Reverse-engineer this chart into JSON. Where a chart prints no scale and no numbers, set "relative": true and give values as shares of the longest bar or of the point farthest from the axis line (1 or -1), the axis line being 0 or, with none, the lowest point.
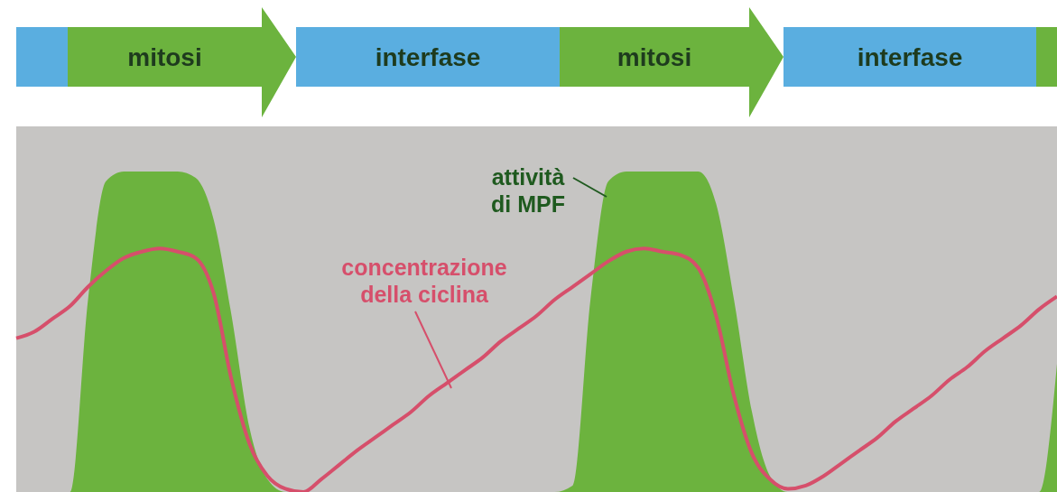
{
  "chart_data": [
    {
      "type": "other",
      "annotations": [
        "mitosi",
        "interfase",
        "mitosi",
        "interfase"
      ]
    },
    {
      "type": "area",
      "relative": true,
      "legend": false,
      "categories": [
        null,
        null,
        null,
        null,
        null,
        null,
        null,
        null,
        null,
        null,
        null,
        null,
        null,
        null,
        null,
        null,
        null,
        null,
        null,
        null,
        null,
        null,
        null,
        null,
        null,
        null,
        null,
        null,
        null,
        null,
        null,
        null,
        null,
        null,
        null,
        null,
        null,
        null,
        null,
        null,
        null,
        null,
        null,
        null,
        null,
        null,
        null,
        null,
        null,
        null,
        null,
        null,
        null,
        null,
        null,
        null,
        null,
        null,
        null
      ],
      "series": [
        {
          "name": "attività di MPF",
          "type": "area",
          "color": "#6cb33e",
          "values": [
            0,
            0,
            0,
            0,
            0.6,
            0.97,
            1,
            1,
            1,
            1,
            0.98,
            0.85,
            0.55,
            0.2,
            0.04,
            0,
            0,
            0,
            0,
            0,
            0,
            0,
            0,
            0,
            0,
            0,
            0,
            0,
            0,
            0,
            0,
            0.02,
            0.6,
            0.97,
            1,
            1,
            1,
            1,
            1,
            0.9,
            0.6,
            0.25,
            0.05,
            0,
            0,
            0,
            0,
            0,
            0,
            0,
            0,
            0,
            0,
            0,
            0,
            0,
            0,
            0,
            0.4
          ]
        },
        {
          "name": "concentrazione della ciclina",
          "type": "line",
          "color": "#d64f6b",
          "values": [
            0.48,
            0.5,
            0.54,
            0.58,
            0.64,
            0.69,
            0.73,
            0.75,
            0.76,
            0.75,
            0.73,
            0.62,
            0.35,
            0.15,
            0.05,
            0.01,
            0,
            0.04,
            0.085,
            0.13,
            0.17,
            0.21,
            0.25,
            0.3,
            0.34,
            0.38,
            0.42,
            0.47,
            0.51,
            0.55,
            0.6,
            0.64,
            0.68,
            0.72,
            0.75,
            0.76,
            0.75,
            0.74,
            0.7,
            0.55,
            0.3,
            0.12,
            0.04,
            0.01,
            0.02,
            0.05,
            0.09,
            0.13,
            0.17,
            0.22,
            0.26,
            0.3,
            0.35,
            0.39,
            0.44,
            0.48,
            0.52,
            0.57,
            0.61
          ]
        }
      ]
    }
  ]
}
